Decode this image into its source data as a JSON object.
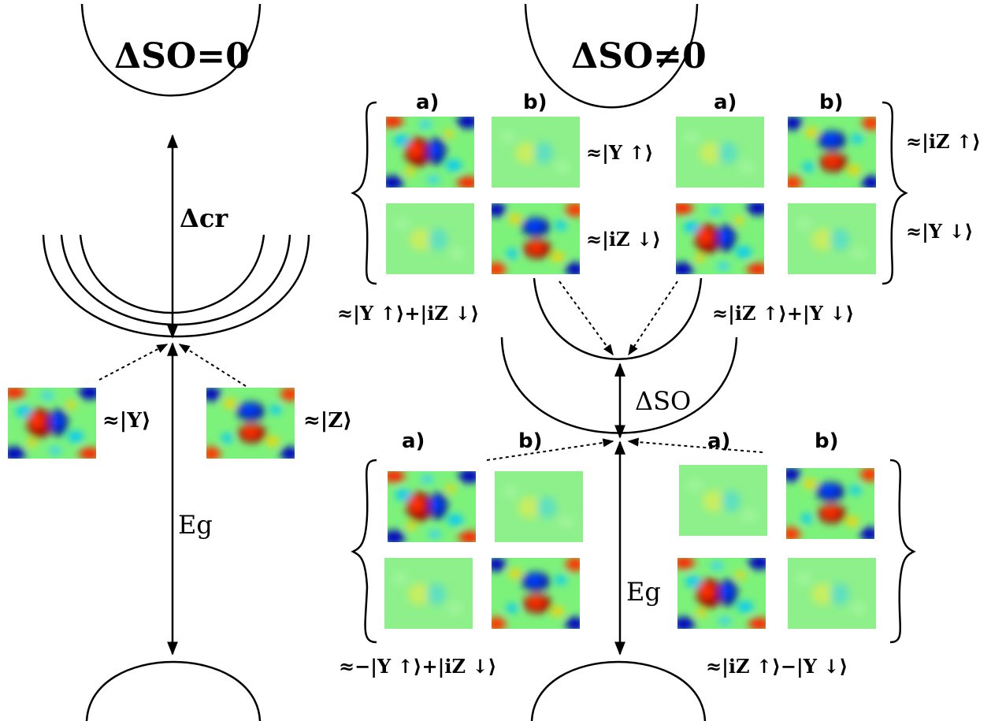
{
  "titles": {
    "left": "ΔSO=0",
    "right": "ΔSO≠0"
  },
  "gaps": {
    "crystal_field": "Δcr",
    "spin_orbit": "ΔSO",
    "band_gap_left": "Eg",
    "band_gap_right": "Eg"
  },
  "panel_labels": {
    "a": "a)",
    "b": "b)"
  },
  "left_states": {
    "y": "≈|Y⟩",
    "z": "≈|Z⟩"
  },
  "upper_group": {
    "row1_mid": "≈|Y ↑⟩",
    "row2_mid": "≈|iZ ↓⟩",
    "row1_right": "≈|iZ ↑⟩",
    "row2_right": "≈|Y ↓⟩",
    "combo_left": "≈|Y ↑⟩+|iZ ↓⟩",
    "combo_right": "≈|iZ ↑⟩+|Y ↓⟩"
  },
  "lower_group": {
    "combo_left": "≈−|Y ↑⟩+|iZ ↓⟩",
    "combo_right": "≈|iZ ↑⟩−|Y ↓⟩"
  },
  "colormap": [
    "#00008f",
    "#0040ff",
    "#00c0ff",
    "#80ff80",
    "#ffc000",
    "#ff4000",
    "#8f0000"
  ]
}
